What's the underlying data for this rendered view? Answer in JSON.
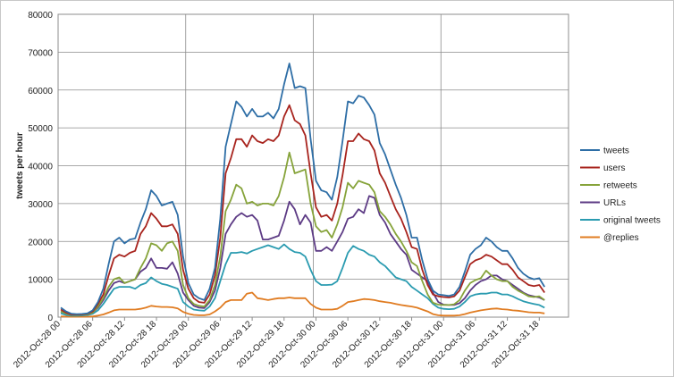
{
  "chart_data": {
    "type": "line",
    "title": "",
    "xlabel": "",
    "ylabel": "tweets per hour",
    "ylim": [
      0,
      80000
    ],
    "yticks": [
      0,
      10000,
      20000,
      30000,
      40000,
      50000,
      60000,
      70000,
      80000
    ],
    "ytick_labels": [
      "0",
      "10000",
      "20000",
      "30000",
      "40000",
      "50000",
      "60000",
      "70000",
      "80000"
    ],
    "x_tick_labels": [
      "2012-Oct-28 00",
      "2012-Oct-28 06",
      "2012-Oct-28 12",
      "2012-Oct-28 18",
      "2012-Oct-29 00",
      "2012-Oct-29 06",
      "2012-Oct-29 12",
      "2012-Oct-29 18",
      "2012-Oct-30 00",
      "2012-Oct-30 06",
      "2012-Oct-30 12",
      "2012-Oct-30 18",
      "2012-Oct-31 00",
      "2012-Oct-31 06",
      "2012-Oct-31 12",
      "2012-Oct-31 18"
    ],
    "x_hours_start": "2012-Oct-28 00",
    "x_tick_step_hours": 6,
    "points_per_series": 96,
    "vertical_gridlines_every_hours": 24,
    "horizontal_grid": true,
    "legend_position": "right",
    "colors": {
      "tweets": "#2e6ea6",
      "users": "#a8241e",
      "retweets": "#86a33a",
      "urls": "#5d3b85",
      "original": "#2a9bb0",
      "replies": "#e07c22"
    },
    "series": [
      {
        "name": "tweets",
        "color_key": "tweets",
        "values": [
          2500,
          1500,
          900,
          800,
          850,
          1000,
          1800,
          4000,
          7500,
          14000,
          20000,
          21000,
          19500,
          20500,
          20800,
          25000,
          28500,
          33500,
          32000,
          29500,
          30000,
          30500,
          27000,
          16000,
          9000,
          6000,
          5000,
          4500,
          7500,
          13000,
          26000,
          45000,
          51000,
          57000,
          55500,
          53000,
          55000,
          53000,
          53000,
          54000,
          52500,
          55000,
          61500,
          67000,
          60500,
          61000,
          60500,
          47000,
          36000,
          33500,
          33000,
          31000,
          37000,
          46500,
          57000,
          56500,
          58500,
          58000,
          56000,
          53500,
          46000,
          43000,
          39000,
          35000,
          31500,
          27000,
          21000,
          21000,
          15000,
          10000,
          7000,
          6000,
          5800,
          5600,
          6000,
          8000,
          12000,
          16500,
          18000,
          19000,
          21000,
          20000,
          18500,
          17500,
          17500,
          15500,
          13000,
          11500,
          10500,
          10000,
          10300,
          8000
        ]
      },
      {
        "name": "users",
        "color_key": "users",
        "values": [
          2000,
          1200,
          700,
          700,
          750,
          900,
          1500,
          3500,
          6000,
          11000,
          15500,
          16500,
          16000,
          17000,
          17500,
          22000,
          24000,
          27500,
          26000,
          24000,
          24000,
          24500,
          22000,
          12500,
          7500,
          5000,
          4000,
          3800,
          6000,
          11000,
          21000,
          38000,
          42000,
          47000,
          47000,
          45000,
          48000,
          46500,
          46000,
          47000,
          46500,
          48000,
          53000,
          56000,
          52000,
          51000,
          48000,
          38000,
          29000,
          26500,
          27000,
          25500,
          30000,
          37500,
          46500,
          46500,
          48500,
          47000,
          46500,
          44000,
          38000,
          35500,
          32000,
          28500,
          26000,
          22500,
          18500,
          18000,
          12500,
          8500,
          6000,
          5500,
          5300,
          5200,
          5500,
          7000,
          10500,
          14000,
          15000,
          15500,
          16500,
          16000,
          15000,
          14000,
          14000,
          12500,
          10500,
          9500,
          8500,
          8200,
          8500,
          6500
        ]
      },
      {
        "name": "retweets",
        "color_key": "retweets",
        "values": [
          1500,
          1000,
          600,
          600,
          650,
          750,
          1200,
          2800,
          5000,
          8000,
          10000,
          10500,
          9000,
          9500,
          10000,
          13000,
          15500,
          19500,
          19000,
          17500,
          19500,
          20000,
          17500,
          8500,
          5000,
          3500,
          3000,
          2800,
          4500,
          8500,
          16000,
          28000,
          31000,
          35000,
          34000,
          30000,
          30500,
          29500,
          30000,
          30000,
          29500,
          32000,
          37000,
          43500,
          38000,
          38500,
          39000,
          30000,
          24000,
          22500,
          23000,
          21000,
          24500,
          29000,
          35500,
          34000,
          36000,
          35500,
          35000,
          33000,
          28000,
          26500,
          24500,
          22000,
          20000,
          17500,
          14500,
          13500,
          9500,
          6000,
          3800,
          3300,
          3200,
          3200,
          3400,
          4500,
          7000,
          9000,
          9800,
          10300,
          12300,
          11000,
          10000,
          9500,
          9500,
          8000,
          7000,
          6300,
          5500,
          5300,
          5500,
          4500
        ]
      },
      {
        "name": "URLs",
        "color_key": "urls",
        "values": [
          1500,
          1000,
          600,
          600,
          650,
          750,
          1200,
          2500,
          4500,
          7000,
          9000,
          9500,
          9000,
          9500,
          10000,
          12000,
          13000,
          15500,
          13000,
          13000,
          12800,
          14500,
          11500,
          6500,
          4500,
          3000,
          2500,
          2400,
          4000,
          7000,
          13000,
          22000,
          24500,
          26500,
          27500,
          26500,
          27000,
          25500,
          20500,
          20500,
          21000,
          21500,
          25500,
          30500,
          28500,
          24500,
          27000,
          25000,
          17500,
          17500,
          18500,
          17500,
          20000,
          22500,
          26000,
          26500,
          28500,
          27500,
          32000,
          31500,
          27000,
          25000,
          22000,
          20000,
          18000,
          16500,
          12500,
          11500,
          10500,
          9500,
          6500,
          4000,
          3300,
          3200,
          3200,
          3700,
          5000,
          7000,
          8500,
          9500,
          10000,
          11000,
          11000,
          10000,
          9500,
          8500,
          7500,
          6500,
          5800,
          5500,
          5200,
          4500
        ]
      },
      {
        "name": "original tweets",
        "color_key": "original",
        "values": [
          1000,
          600,
          400,
          400,
          450,
          550,
          900,
          1800,
          3500,
          5500,
          7500,
          8000,
          8000,
          8000,
          7500,
          8500,
          9000,
          10500,
          9500,
          8800,
          8500,
          8000,
          7500,
          4000,
          2800,
          2000,
          1800,
          1700,
          2800,
          5000,
          9500,
          14000,
          17000,
          17000,
          17200,
          16800,
          17500,
          18000,
          18500,
          19000,
          18500,
          18000,
          19200,
          18000,
          17200,
          17000,
          16000,
          12500,
          9500,
          8500,
          8500,
          8600,
          9500,
          13000,
          17000,
          18800,
          18000,
          17500,
          16500,
          16000,
          14500,
          13500,
          12000,
          10500,
          10000,
          9500,
          8000,
          7000,
          6000,
          5000,
          3500,
          2500,
          2200,
          2100,
          2200,
          2800,
          4000,
          5500,
          6000,
          6200,
          6200,
          6500,
          6500,
          6000,
          6000,
          5500,
          4800,
          4200,
          3800,
          3500,
          3200,
          2500
        ]
      },
      {
        "name": "@replies",
        "color_key": "replies",
        "values": [
          200,
          150,
          100,
          100,
          100,
          120,
          200,
          400,
          700,
          1200,
          1800,
          2000,
          2000,
          2000,
          2000,
          2200,
          2500,
          3000,
          2800,
          2700,
          2700,
          2600,
          2300,
          1400,
          900,
          600,
          500,
          500,
          700,
          1500,
          2500,
          4000,
          4500,
          4500,
          4500,
          6200,
          6500,
          5000,
          4800,
          4500,
          4800,
          5000,
          5000,
          5200,
          5000,
          5000,
          5000,
          3500,
          2500,
          2000,
          2000,
          2000,
          2200,
          3000,
          4000,
          4200,
          4500,
          4800,
          4700,
          4500,
          4200,
          4000,
          3800,
          3500,
          3200,
          3000,
          2800,
          2500,
          2000,
          1500,
          800,
          500,
          400,
          400,
          400,
          500,
          800,
          1200,
          1500,
          1800,
          2000,
          2200,
          2300,
          2100,
          2000,
          1800,
          1700,
          1500,
          1300,
          1200,
          1200,
          1000
        ]
      }
    ]
  }
}
